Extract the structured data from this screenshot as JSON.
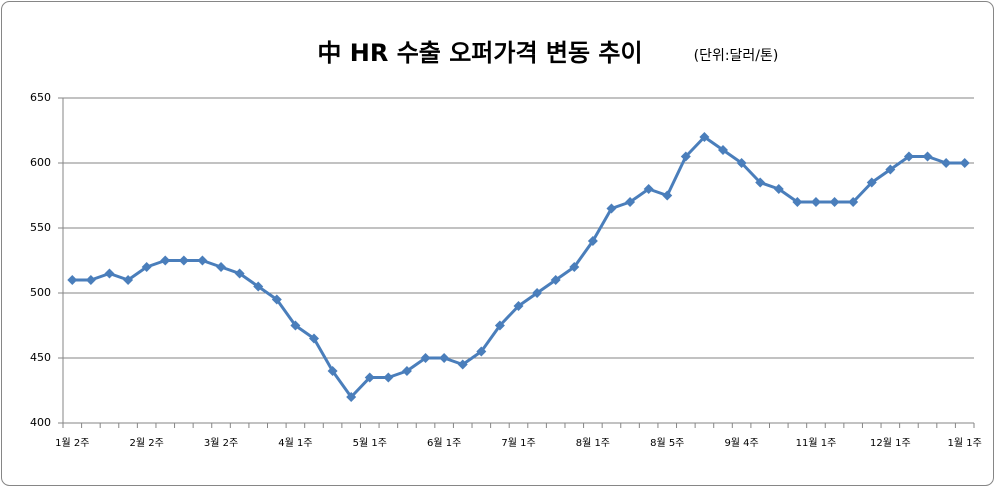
{
  "chart_data": {
    "type": "line",
    "title": "中 HR 수출 오퍼가격 변동 추이",
    "subtitle": "(단위:달러/톤)",
    "categories": [
      "1월 2주",
      null,
      null,
      null,
      "2월 2주",
      null,
      null,
      null,
      "3월 2주",
      null,
      null,
      null,
      "4월 1주",
      null,
      null,
      null,
      "5월 1주",
      null,
      null,
      null,
      "6월 1주",
      null,
      null,
      null,
      "7월 1주",
      null,
      null,
      null,
      "8월 1주",
      null,
      null,
      null,
      "8월 5주",
      null,
      null,
      null,
      "9월 4주",
      null,
      null,
      null,
      "11월 1주",
      null,
      null,
      null,
      "12월 1주",
      null,
      null,
      null,
      "1월 1주"
    ],
    "series": [
      {
        "color": "#4a7ebb",
        "values": [
          510,
          510,
          515,
          510,
          520,
          525,
          525,
          525,
          520,
          515,
          505,
          495,
          475,
          465,
          440,
          420,
          435,
          435,
          440,
          450,
          450,
          445,
          455,
          475,
          490,
          500,
          510,
          520,
          540,
          565,
          570,
          580,
          575,
          605,
          620,
          610,
          600,
          585,
          580,
          570,
          570,
          570,
          570,
          585,
          595,
          605,
          605,
          600,
          600
        ]
      }
    ],
    "ylim": [
      400,
      650
    ],
    "yticks": [
      400,
      450,
      500,
      550,
      600,
      650
    ],
    "grid": true
  }
}
